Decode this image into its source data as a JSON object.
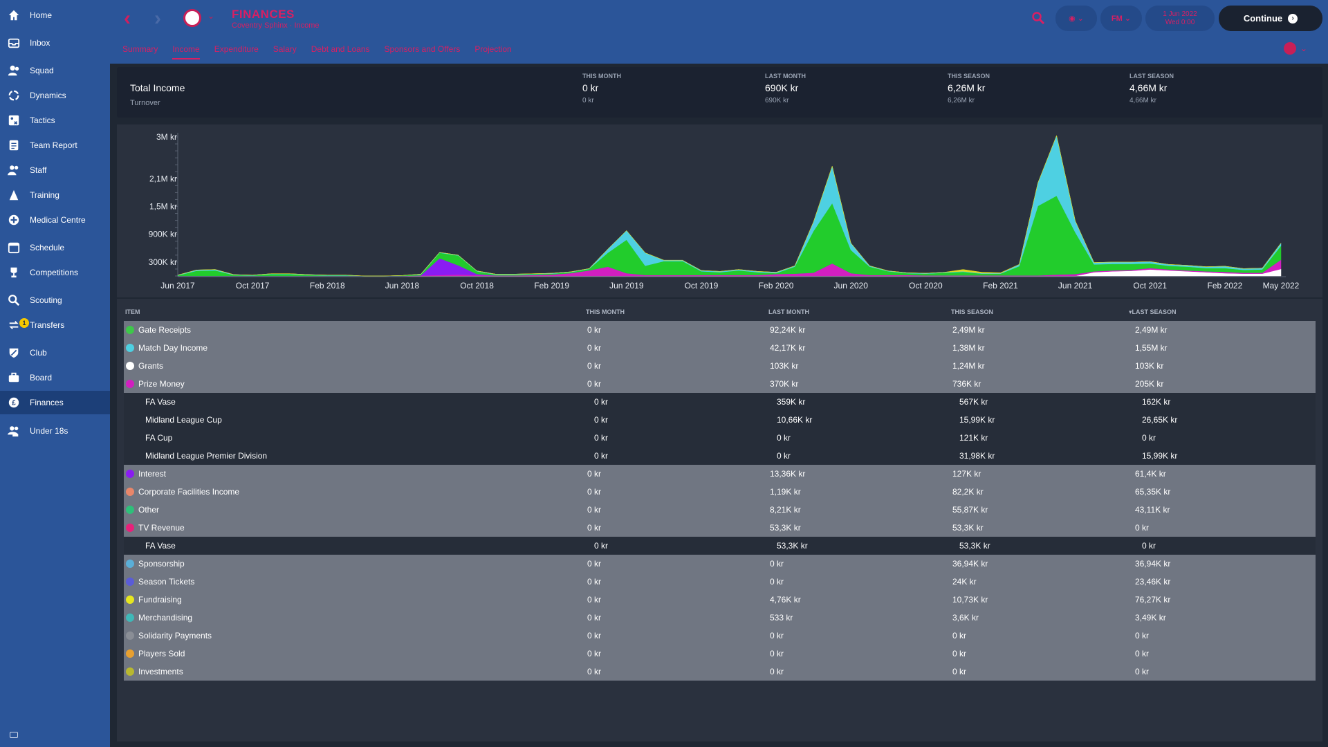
{
  "sidebar": {
    "items": [
      {
        "label": "Home",
        "icon": "home-icon"
      },
      {
        "label": "Inbox",
        "icon": "inbox-icon"
      },
      {
        "label": "Squad",
        "icon": "squad-icon"
      },
      {
        "label": "Dynamics",
        "icon": "dynamics-icon"
      },
      {
        "label": "Tactics",
        "icon": "tactics-icon"
      },
      {
        "label": "Team Report",
        "icon": "team-report-icon"
      },
      {
        "label": "Staff",
        "icon": "staff-icon"
      },
      {
        "label": "Training",
        "icon": "training-icon"
      },
      {
        "label": "Medical Centre",
        "icon": "medical-icon"
      },
      {
        "label": "Schedule",
        "icon": "schedule-icon"
      },
      {
        "label": "Competitions",
        "icon": "trophy-icon"
      },
      {
        "label": "Scouting",
        "icon": "scouting-icon"
      },
      {
        "label": "Transfers",
        "icon": "transfers-icon",
        "badge": "1"
      },
      {
        "label": "Club",
        "icon": "club-icon"
      },
      {
        "label": "Board",
        "icon": "board-icon"
      },
      {
        "label": "Finances",
        "icon": "finances-icon"
      },
      {
        "label": "Under 18s",
        "icon": "under18-icon"
      }
    ],
    "active": "Finances"
  },
  "header": {
    "title": "FINANCES",
    "subtitle": "Coventry Sphinx · Income",
    "tabs": [
      "Summary",
      "Income",
      "Expenditure",
      "Salary",
      "Debt and Loans",
      "Sponsors and Offers",
      "Projection"
    ],
    "active_tab": "Income",
    "date_line1": "1 Jun 2022",
    "date_line2": "Wed 0:00",
    "fm_label": "FM",
    "continue_label": "Continue",
    "accent": "#d91f63"
  },
  "summary": {
    "title": "Total Income",
    "subtitle": "Turnover",
    "columns": [
      {
        "head": "THIS MONTH",
        "value": "0 kr",
        "sub": "0 kr"
      },
      {
        "head": "LAST MONTH",
        "value": "690K kr",
        "sub": "690K kr"
      },
      {
        "head": "THIS SEASON",
        "value": "6,26M kr",
        "sub": "6,26M kr"
      },
      {
        "head": "LAST SEASON",
        "value": "4,66M kr",
        "sub": "4,66M kr"
      }
    ]
  },
  "chart_data": {
    "type": "area",
    "stacked": true,
    "y_ticks": [
      "3M kr",
      "2,1M kr",
      "1,5M kr",
      "900K kr",
      "300K kr"
    ],
    "y_tick_values": [
      3000000,
      2100000,
      1500000,
      900000,
      300000
    ],
    "ylim": [
      0,
      3000000
    ],
    "x_ticks": [
      "Jun 2017",
      "Oct 2017",
      "Feb 2018",
      "Jun 2018",
      "Oct 2018",
      "Feb 2019",
      "Jun 2019",
      "Oct 2019",
      "Feb 2020",
      "Jun 2020",
      "Oct 2020",
      "Feb 2021",
      "Jun 2021",
      "Oct 2021",
      "Feb 2022",
      "May 2022"
    ],
    "months": 60,
    "series": [
      {
        "color": "#ffffff",
        "values": [
          0,
          0,
          0,
          0,
          0,
          0,
          0,
          0,
          0,
          0,
          0,
          0,
          0,
          0,
          0,
          0,
          0,
          0,
          0,
          0,
          0,
          0,
          0,
          0,
          0,
          0,
          0,
          0,
          0,
          0,
          0,
          0,
          0,
          0,
          0,
          0,
          0,
          0,
          0,
          0,
          0,
          0,
          0,
          0,
          0,
          0,
          0,
          0,
          0,
          80000,
          100000,
          110000,
          140000,
          120000,
          100000,
          80000,
          60000,
          50000,
          50000,
          150000
        ]
      },
      {
        "color": "#d21fc0",
        "values": [
          0,
          0,
          0,
          0,
          0,
          0,
          0,
          0,
          0,
          0,
          0,
          0,
          0,
          10000,
          20000,
          30000,
          20000,
          10000,
          10000,
          20000,
          30000,
          60000,
          120000,
          200000,
          60000,
          20000,
          20000,
          20000,
          20000,
          20000,
          20000,
          20000,
          40000,
          50000,
          70000,
          270000,
          60000,
          20000,
          20000,
          20000,
          10000,
          10000,
          10000,
          10000,
          10000,
          10000,
          10000,
          30000,
          40000,
          20000,
          20000,
          20000,
          30000,
          20000,
          20000,
          20000,
          30000,
          20000,
          20000,
          200000
        ]
      },
      {
        "color": "#8a1cf2",
        "values": [
          0,
          0,
          0,
          0,
          0,
          0,
          0,
          0,
          0,
          0,
          0,
          0,
          0,
          0,
          360000,
          200000,
          20000,
          0,
          0,
          0,
          0,
          0,
          0,
          0,
          0,
          0,
          0,
          0,
          0,
          0,
          0,
          0,
          0,
          0,
          0,
          0,
          0,
          0,
          0,
          0,
          0,
          0,
          0,
          0,
          0,
          0,
          0,
          0,
          0,
          0,
          0,
          0,
          0,
          0,
          0,
          0,
          0,
          0,
          0,
          0
        ]
      },
      {
        "color": "#22cc2c",
        "values": [
          10000,
          110000,
          120000,
          20000,
          10000,
          40000,
          40000,
          20000,
          10000,
          10000,
          0,
          0,
          10000,
          20000,
          120000,
          210000,
          60000,
          20000,
          20000,
          20000,
          20000,
          20000,
          30000,
          300000,
          720000,
          200000,
          300000,
          300000,
          80000,
          60000,
          100000,
          60000,
          20000,
          150000,
          900000,
          1300000,
          500000,
          180000,
          80000,
          40000,
          40000,
          60000,
          80000,
          40000,
          40000,
          200000,
          1500000,
          1700000,
          900000,
          150000,
          140000,
          130000,
          100000,
          80000,
          80000,
          70000,
          80000,
          60000,
          70000,
          300000
        ]
      },
      {
        "color": "#4ed0e2",
        "values": [
          10000,
          20000,
          20000,
          10000,
          10000,
          10000,
          10000,
          10000,
          10000,
          10000,
          0,
          0,
          0,
          10000,
          10000,
          10000,
          10000,
          10000,
          10000,
          10000,
          10000,
          10000,
          10000,
          80000,
          200000,
          280000,
          20000,
          20000,
          20000,
          20000,
          20000,
          20000,
          20000,
          20000,
          200000,
          800000,
          150000,
          20000,
          10000,
          10000,
          10000,
          10000,
          10000,
          10000,
          10000,
          40000,
          500000,
          1300000,
          250000,
          40000,
          40000,
          40000,
          40000,
          30000,
          30000,
          30000,
          40000,
          30000,
          30000,
          60000
        ]
      },
      {
        "color": "#e0d820",
        "values": [
          0,
          0,
          0,
          0,
          0,
          0,
          0,
          0,
          0,
          0,
          0,
          0,
          0,
          0,
          0,
          0,
          0,
          0,
          0,
          0,
          0,
          0,
          0,
          0,
          0,
          0,
          0,
          0,
          0,
          0,
          0,
          0,
          0,
          0,
          0,
          0,
          0,
          0,
          0,
          0,
          0,
          0,
          40000,
          20000,
          10000,
          0,
          0,
          0,
          0,
          0,
          0,
          0,
          0,
          0,
          0,
          0,
          0,
          0,
          0,
          0
        ]
      }
    ],
    "grid": false
  },
  "table": {
    "headers": {
      "item": "ITEM",
      "this_month": "THIS MONTH",
      "last_month": "LAST MONTH",
      "this_season": "THIS SEASON",
      "last_season": "LAST SEASON"
    },
    "rows": [
      {
        "type": "main",
        "name": "Gate Receipts",
        "color": "#3ec84a",
        "this_month": "0 kr",
        "last_month": "92,24K kr",
        "this_season": "2,49M kr",
        "last_season": "2,49M kr"
      },
      {
        "type": "main",
        "name": "Match Day Income",
        "color": "#4ed0e2",
        "this_month": "0 kr",
        "last_month": "42,17K kr",
        "this_season": "1,38M kr",
        "last_season": "1,55M kr"
      },
      {
        "type": "main",
        "name": "Grants",
        "color": "#ffffff",
        "this_month": "0 kr",
        "last_month": "103K kr",
        "this_season": "1,24M kr",
        "last_season": "103K kr"
      },
      {
        "type": "main",
        "name": "Prize Money",
        "color": "#d21fc0",
        "this_month": "0 kr",
        "last_month": "370K kr",
        "this_season": "736K kr",
        "last_season": "205K kr"
      },
      {
        "type": "sub",
        "name": "FA Vase",
        "this_month": "0 kr",
        "last_month": "359K kr",
        "this_season": "567K kr",
        "last_season": "162K kr"
      },
      {
        "type": "sub",
        "name": "Midland League Cup",
        "this_month": "0 kr",
        "last_month": "10,66K kr",
        "this_season": "15,99K kr",
        "last_season": "26,65K kr"
      },
      {
        "type": "sub",
        "name": "FA Cup",
        "this_month": "0 kr",
        "last_month": "0 kr",
        "this_season": "121K kr",
        "last_season": "0 kr"
      },
      {
        "type": "sub",
        "name": "Midland League Premier Division",
        "this_month": "0 kr",
        "last_month": "0 kr",
        "this_season": "31,98K kr",
        "last_season": "15,99K kr"
      },
      {
        "type": "main",
        "name": "Interest",
        "color": "#8a1cf2",
        "this_month": "0 kr",
        "last_month": "13,36K kr",
        "this_season": "127K kr",
        "last_season": "61,4K kr"
      },
      {
        "type": "main",
        "name": "Corporate Facilities Income",
        "color": "#e8866a",
        "this_month": "0 kr",
        "last_month": "1,19K kr",
        "this_season": "82,2K kr",
        "last_season": "65,35K kr"
      },
      {
        "type": "main",
        "name": "Other",
        "color": "#2ec07a",
        "this_month": "0 kr",
        "last_month": "8,21K kr",
        "this_season": "55,87K kr",
        "last_season": "43,11K kr"
      },
      {
        "type": "main",
        "name": "TV Revenue",
        "color": "#e8207a",
        "this_month": "0 kr",
        "last_month": "53,3K kr",
        "this_season": "53,3K kr",
        "last_season": "0 kr"
      },
      {
        "type": "sub",
        "name": "FA Vase",
        "this_month": "0 kr",
        "last_month": "53,3K kr",
        "this_season": "53,3K kr",
        "last_season": "0 kr"
      },
      {
        "type": "main",
        "name": "Sponsorship",
        "color": "#5aaed8",
        "this_month": "0 kr",
        "last_month": "0 kr",
        "this_season": "36,94K kr",
        "last_season": "36,94K kr"
      },
      {
        "type": "main",
        "name": "Season Tickets",
        "color": "#5a5cd8",
        "this_month": "0 kr",
        "last_month": "0 kr",
        "this_season": "24K kr",
        "last_season": "23,46K kr"
      },
      {
        "type": "main",
        "name": "Fundraising",
        "color": "#e6e620",
        "this_month": "0 kr",
        "last_month": "4,76K kr",
        "this_season": "10,73K kr",
        "last_season": "76,27K kr"
      },
      {
        "type": "main",
        "name": "Merchandising",
        "color": "#3fb8b8",
        "this_month": "0 kr",
        "last_month": "533 kr",
        "this_season": "3,6K kr",
        "last_season": "3,49K kr"
      },
      {
        "type": "main",
        "name": "Solidarity Payments",
        "color": "#8a8e96",
        "this_month": "0 kr",
        "last_month": "0 kr",
        "this_season": "0 kr",
        "last_season": "0 kr"
      },
      {
        "type": "main",
        "name": "Players Sold",
        "color": "#e8a030",
        "this_month": "0 kr",
        "last_month": "0 kr",
        "this_season": "0 kr",
        "last_season": "0 kr"
      },
      {
        "type": "main",
        "name": "Investments",
        "color": "#b8b830",
        "this_month": "0 kr",
        "last_month": "0 kr",
        "this_season": "0 kr",
        "last_season": "0 kr"
      }
    ]
  }
}
